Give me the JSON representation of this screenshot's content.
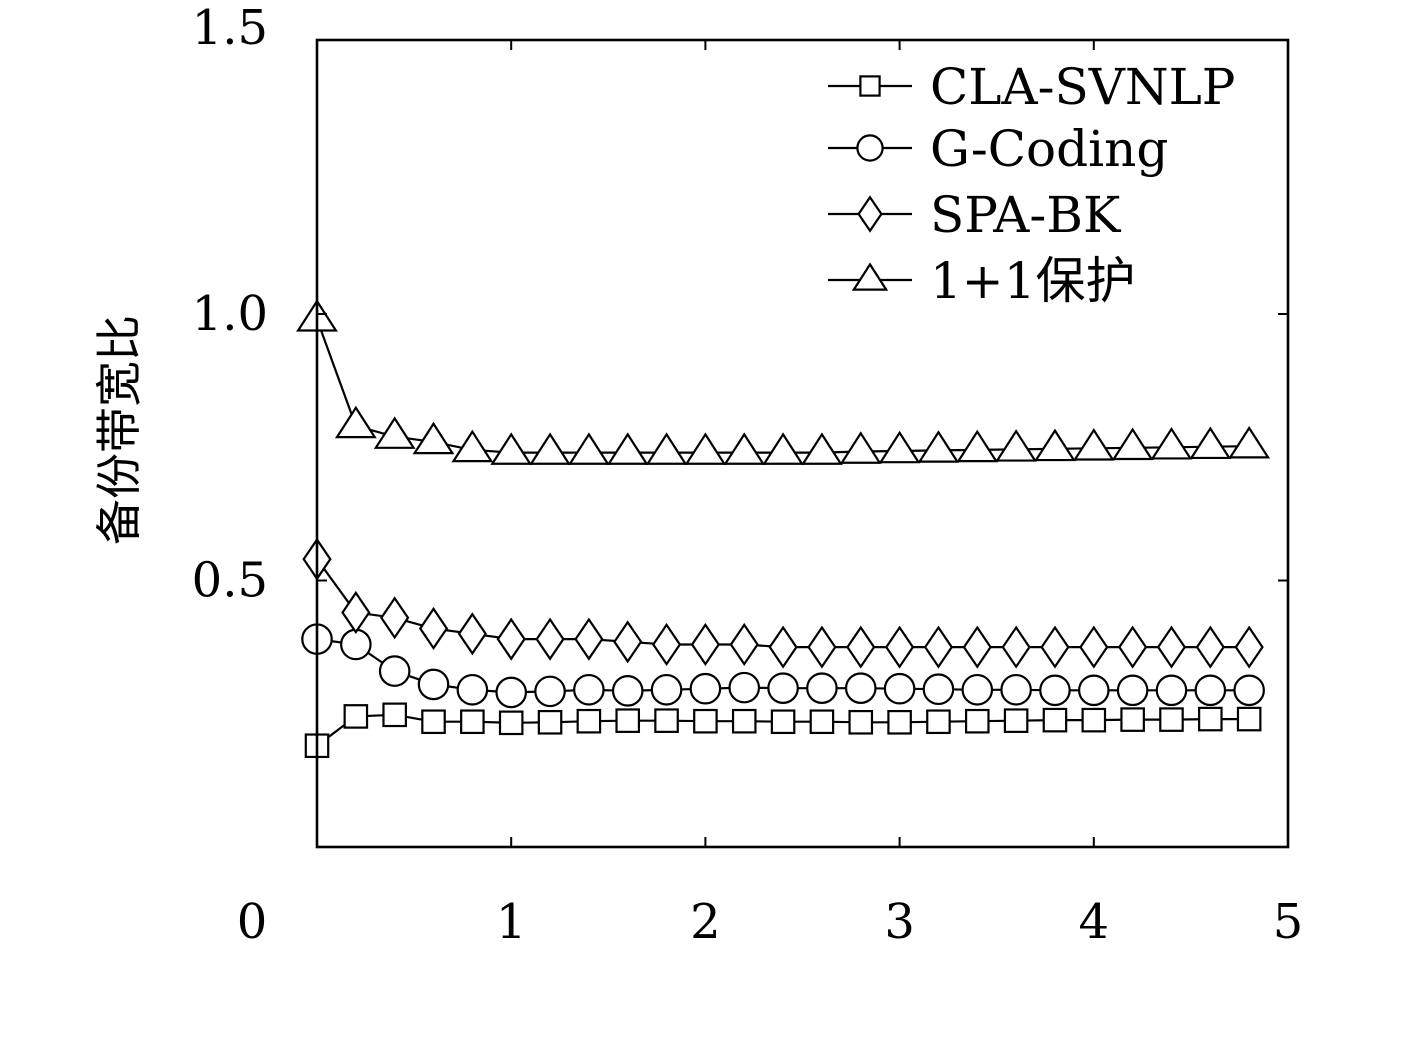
{
  "chart_data": {
    "type": "line",
    "title": "",
    "xlabel": "",
    "ylabel": "备份带宽比",
    "xlim": [
      0,
      5
    ],
    "ylim": [
      0,
      1.5
    ],
    "xticks": [
      0,
      1,
      2,
      3,
      4,
      5
    ],
    "xtick_labels": [
      "0",
      "1",
      "2",
      "3",
      "4",
      "5"
    ],
    "yticks": [
      0.5,
      1.0,
      1.5
    ],
    "ytick_labels": [
      "0.5",
      "1.0",
      "1.5"
    ],
    "grid": false,
    "legend_position": "top-right",
    "x": [
      0.0,
      0.2,
      0.4,
      0.6,
      0.8,
      1.0,
      1.2,
      1.4,
      1.6,
      1.8,
      2.0,
      2.2,
      2.4,
      2.6,
      2.8,
      3.0,
      3.2,
      3.4,
      3.6,
      3.8,
      4.0,
      4.2,
      4.4,
      4.6,
      4.8
    ],
    "series": [
      {
        "name": "CLA-SVNLP",
        "marker": "square",
        "values": [
          0.19,
          0.245,
          0.248,
          0.235,
          0.235,
          0.233,
          0.234,
          0.236,
          0.237,
          0.237,
          0.236,
          0.236,
          0.235,
          0.235,
          0.234,
          0.234,
          0.235,
          0.236,
          0.237,
          0.238,
          0.238,
          0.239,
          0.239,
          0.24,
          0.24
        ]
      },
      {
        "name": "G-Coding",
        "marker": "circle",
        "values": [
          0.39,
          0.38,
          0.33,
          0.305,
          0.295,
          0.29,
          0.292,
          0.295,
          0.293,
          0.295,
          0.297,
          0.299,
          0.298,
          0.298,
          0.298,
          0.297,
          0.296,
          0.295,
          0.295,
          0.294,
          0.294,
          0.294,
          0.294,
          0.294,
          0.294
        ]
      },
      {
        "name": "SPA-BK",
        "marker": "diamond",
        "values": [
          0.54,
          0.44,
          0.43,
          0.41,
          0.4,
          0.39,
          0.39,
          0.39,
          0.385,
          0.38,
          0.38,
          0.38,
          0.375,
          0.375,
          0.375,
          0.375,
          0.375,
          0.375,
          0.375,
          0.375,
          0.375,
          0.375,
          0.375,
          0.375,
          0.375
        ]
      },
      {
        "name": "1+1保护",
        "marker": "triangle",
        "values": [
          0.99,
          0.79,
          0.77,
          0.76,
          0.745,
          0.74,
          0.74,
          0.74,
          0.74,
          0.74,
          0.74,
          0.74,
          0.74,
          0.74,
          0.742,
          0.743,
          0.744,
          0.745,
          0.746,
          0.747,
          0.748,
          0.749,
          0.75,
          0.751,
          0.752
        ]
      }
    ]
  }
}
